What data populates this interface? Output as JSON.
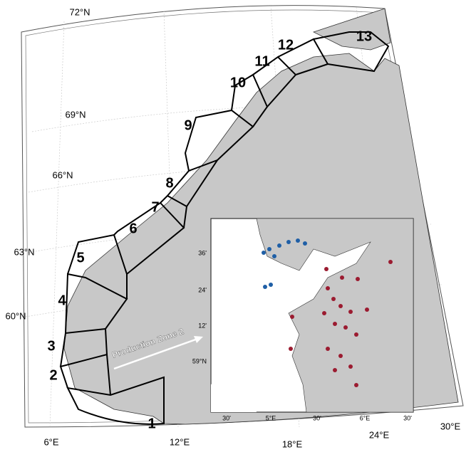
{
  "latitude_labels": [
    "72°N",
    "69°N",
    "66°N",
    "63°N",
    "60°N"
  ],
  "longitude_labels": [
    "6°E",
    "12°E",
    "18°E",
    "24°E",
    "30°E"
  ],
  "zones": [
    "1",
    "2",
    "3",
    "4",
    "5",
    "6",
    "7",
    "8",
    "9",
    "10",
    "11",
    "12",
    "13"
  ],
  "annotation": "Production Zone 2",
  "inset": {
    "lat_labels": [
      "36'",
      "24'",
      "12'",
      "59°N"
    ],
    "lon_labels": [
      "30'",
      "5°E",
      "30'",
      "6°E",
      "30'"
    ]
  }
}
